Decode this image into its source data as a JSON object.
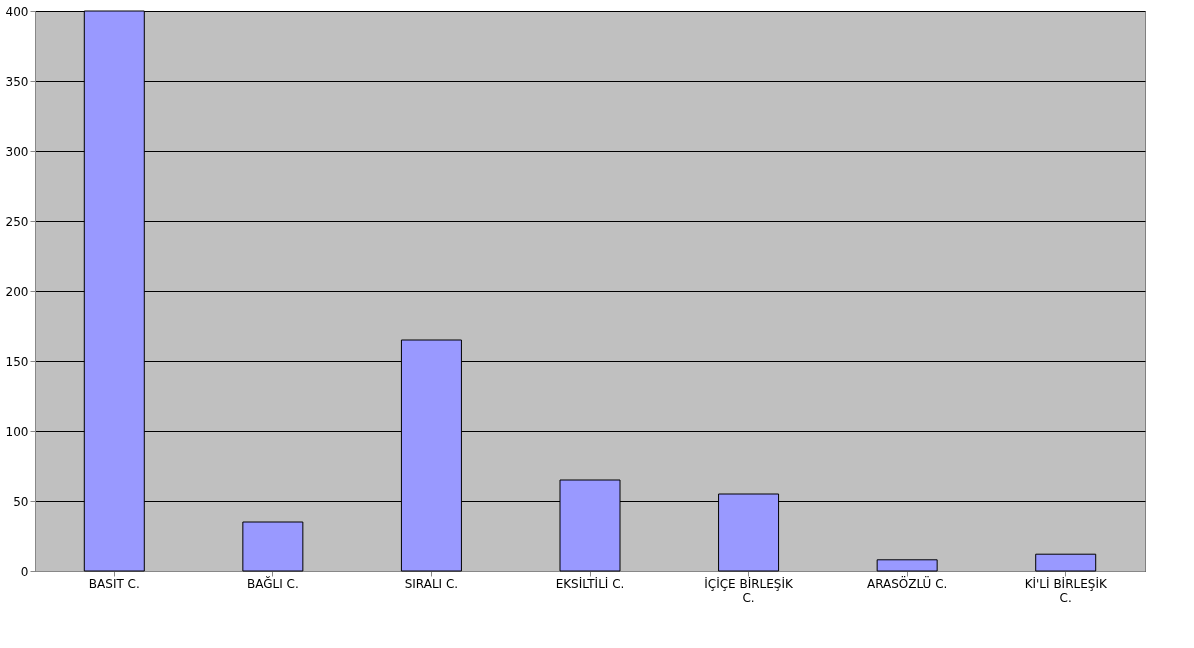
{
  "chart_data": {
    "type": "bar",
    "categories": [
      "BASIT C.",
      "BAĞLI C.",
      "SIRALI C.",
      "EKSİLTİLİ C.",
      "İÇİÇE BİRLEŞİK C.",
      "ARASÖZLÜ C.",
      "Kİ'Lİ BİRLEŞİK C."
    ],
    "values": [
      400,
      35,
      165,
      65,
      55,
      8,
      12
    ],
    "color": "#9999ff",
    "ylim": [
      0,
      400
    ],
    "yticks": [
      0,
      50,
      100,
      150,
      200,
      250,
      300,
      350,
      400
    ],
    "grid": "y"
  }
}
